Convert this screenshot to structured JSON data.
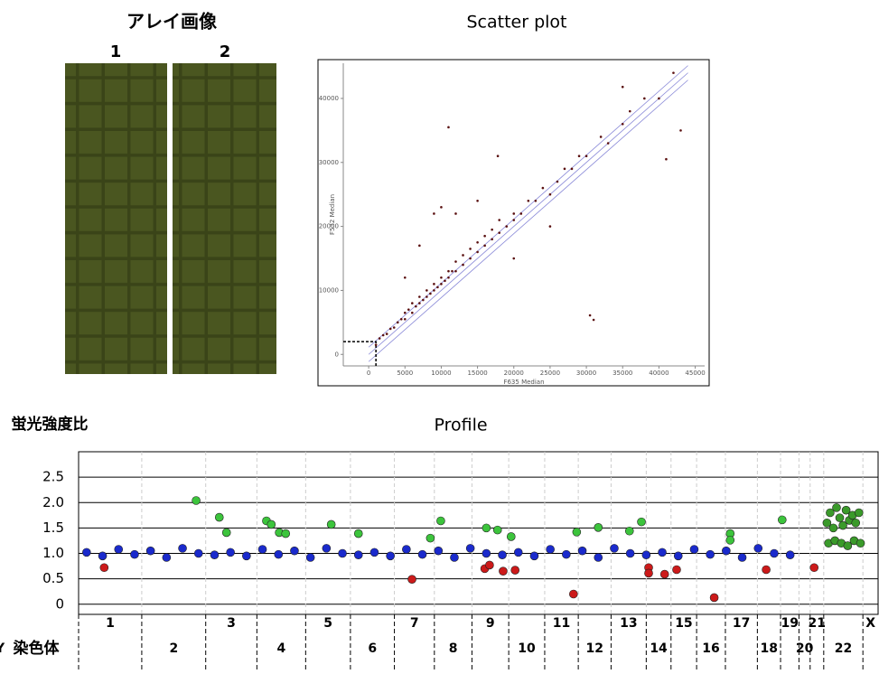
{
  "array_image": {
    "title": "アレイ画像",
    "labels": [
      "1",
      "2"
    ]
  },
  "chart_data": [
    {
      "type": "scatter",
      "title": "Scatter plot",
      "xlabel": "F635 Median",
      "ylabel": "F532 Median",
      "xlim": [
        -3500,
        46300
      ],
      "ylim": [
        -1800,
        45500
      ],
      "xticks": [
        0,
        5000,
        10000,
        15000,
        20000,
        25000,
        30000,
        35000,
        40000,
        45000
      ],
      "yticks": [
        0,
        10000,
        20000,
        30000,
        40000
      ],
      "series": [
        {
          "color": "#5a1010",
          "x": [
            1000,
            1500,
            2000,
            2500,
            3000,
            3500,
            4000,
            4500,
            5000,
            5000,
            5500,
            6000,
            6000,
            6500,
            7000,
            7000,
            7500,
            8000,
            8000,
            8500,
            9000,
            9000,
            9500,
            10000,
            10000,
            10500,
            11000,
            11000,
            11500,
            12000,
            12000,
            13000,
            13000,
            14000,
            14000,
            15000,
            15000,
            16000,
            16000,
            17000,
            17000,
            18000,
            18000,
            19000,
            20000,
            20000,
            21000,
            22000,
            23000,
            24000,
            25000,
            26000,
            27000,
            28000,
            29000,
            30000,
            32000,
            33000,
            35000,
            36000,
            38000,
            40000,
            42000,
            7000,
            9000,
            10000,
            12000,
            15000,
            5000,
            20000,
            25000,
            11000,
            17800,
            30500,
            31000,
            35000,
            41000,
            43000
          ],
          "values": [
            1500,
            2500,
            3000,
            3200,
            4000,
            4200,
            5000,
            5500,
            6500,
            5500,
            7000,
            6500,
            8000,
            7500,
            8000,
            9000,
            8500,
            9000,
            10000,
            9500,
            10000,
            11000,
            10500,
            11000,
            12000,
            11500,
            12000,
            13000,
            13000,
            13000,
            14500,
            14000,
            15500,
            15000,
            16500,
            16000,
            17500,
            17000,
            18500,
            18000,
            19500,
            19000,
            21000,
            20000,
            21000,
            22000,
            22000,
            24000,
            24000,
            26000,
            25000,
            27000,
            29000,
            29000,
            31000,
            31000,
            34000,
            33000,
            36000,
            38000,
            40000,
            40000,
            44000,
            17000,
            22000,
            23000,
            22000,
            24000,
            12000,
            15000,
            20000,
            35500,
            31000,
            6100,
            5400,
            41800,
            30500,
            35000
          ]
        }
      ]
    },
    {
      "type": "scatter",
      "title": "Profile",
      "ylabel": "蛍光強度比",
      "xlabel": "染色体",
      "xlim": [
        0,
        100
      ],
      "ylim": [
        -0.2,
        3.0
      ],
      "yticks": [
        0,
        0.5,
        {
          "value": 1,
          "label": "1.0"
        },
        1.5,
        {
          "value": 2,
          "label": "2.0"
        },
        2.5
      ],
      "grid": true,
      "chromosome_bounds": [
        7.9,
        15.9,
        22.3,
        28.4,
        34.0,
        39.5,
        44.5,
        49.2,
        53.8,
        58.3,
        62.5,
        66.6,
        71.0,
        74.1,
        77.3,
        80.9,
        84.9,
        87.8,
        90.1,
        91.5,
        93.2,
        98.1
      ],
      "categories": [
        "1",
        "2",
        "3",
        "4",
        "5",
        "6",
        "7",
        "8",
        "9",
        "10",
        "11",
        "12",
        "13",
        "14",
        "15",
        "16",
        "17",
        "18",
        "19",
        "20",
        "21",
        "22",
        "X",
        "Y"
      ],
      "series": [
        {
          "color": "#1a2acc",
          "x": [
            1,
            3,
            5,
            7,
            9,
            11,
            13,
            15,
            17,
            19,
            21,
            23,
            25,
            27,
            29,
            31,
            33,
            35,
            37,
            39,
            41,
            43,
            45,
            47,
            49,
            51,
            53,
            55,
            57,
            59,
            61,
            63,
            65,
            67,
            69,
            71,
            73,
            75,
            77,
            79,
            81,
            83,
            85,
            87,
            89
          ],
          "values": [
            1.02,
            0.95,
            1.08,
            0.98,
            1.05,
            0.92,
            1.1,
            1.0,
            0.97,
            1.02,
            0.95,
            1.08,
            0.98,
            1.05,
            0.92,
            1.1,
            1.0,
            0.97,
            1.02,
            0.95,
            1.08,
            0.98,
            1.05,
            0.92,
            1.1,
            1.0,
            0.97,
            1.02,
            0.95,
            1.08,
            0.98,
            1.05,
            0.92,
            1.1,
            1.0,
            0.97,
            1.02,
            0.95,
            1.08,
            0.98,
            1.05,
            0.92,
            1.1,
            1.0,
            0.97
          ]
        },
        {
          "color": "#3cc43c",
          "x": [
            14.7,
            17.6,
            18.5,
            23.5,
            24.1,
            25.1,
            25.9,
            31.6,
            35.0,
            44.0,
            45.3,
            51.0,
            52.4,
            54.1,
            62.3,
            65.0,
            68.9,
            70.4,
            81.5,
            81.5,
            88.0
          ],
          "values": [
            2.04,
            1.71,
            1.41,
            1.64,
            1.57,
            1.41,
            1.39,
            1.57,
            1.39,
            1.3,
            1.64,
            1.5,
            1.46,
            1.33,
            1.42,
            1.51,
            1.44,
            1.62,
            1.39,
            1.26,
            1.66
          ]
        },
        {
          "color": "#cc1a1a",
          "x": [
            3.2,
            41.7,
            50.8,
            51.4,
            53.1,
            54.6,
            61.9,
            71.3,
            71.3,
            73.3,
            74.8,
            79.5,
            86.0,
            92.0
          ],
          "values": [
            0.72,
            0.49,
            0.7,
            0.77,
            0.65,
            0.67,
            0.2,
            0.72,
            0.61,
            0.59,
            0.68,
            0.13,
            0.68,
            0.72
          ]
        },
        {
          "color": "#3a9a2a",
          "x": [
            93.6,
            94.0,
            94.4,
            94.8,
            95.2,
            95.6,
            96.0,
            96.4,
            96.8,
            97.2,
            97.6,
            93.8,
            94.6,
            95.4,
            96.2,
            97.0,
            97.8
          ],
          "values": [
            1.6,
            1.8,
            1.5,
            1.9,
            1.7,
            1.55,
            1.85,
            1.65,
            1.75,
            1.6,
            1.8,
            1.2,
            1.25,
            1.2,
            1.15,
            1.25,
            1.2
          ]
        }
      ]
    }
  ]
}
